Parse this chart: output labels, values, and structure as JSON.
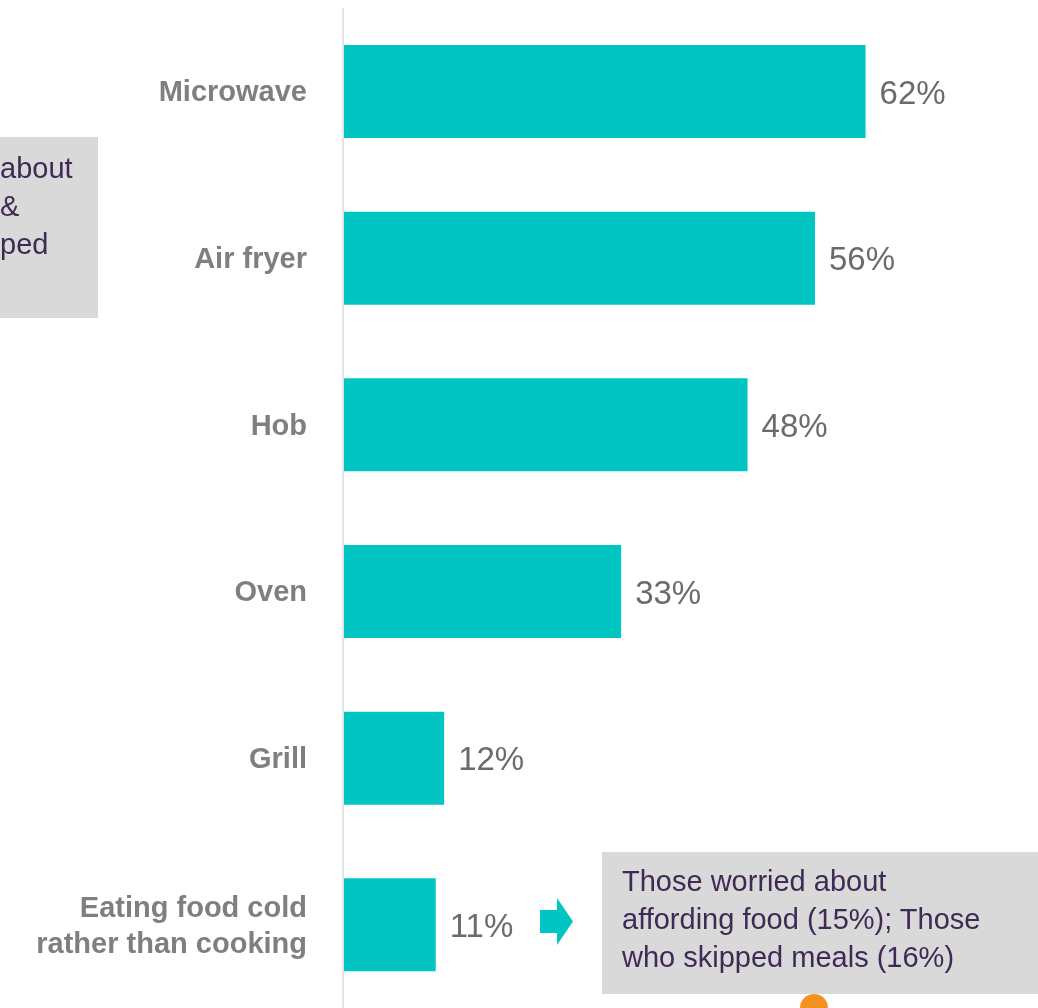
{
  "chart_data": {
    "type": "bar",
    "orientation": "horizontal",
    "relative": false,
    "categories": [
      "Microwave",
      "Air fryer",
      "Hob",
      "Oven",
      "Grill",
      "Eating food cold rather than cooking"
    ],
    "values": [
      62,
      56,
      48,
      33,
      12,
      11
    ],
    "value_labels": [
      "62%",
      "56%",
      "48%",
      "33%",
      "12%",
      "11%"
    ],
    "color": "#00c5c2",
    "annotations": [
      "about\n&\nped",
      "Those worried about affording food (15%); Those who skipped meals (16%)"
    ]
  }
}
